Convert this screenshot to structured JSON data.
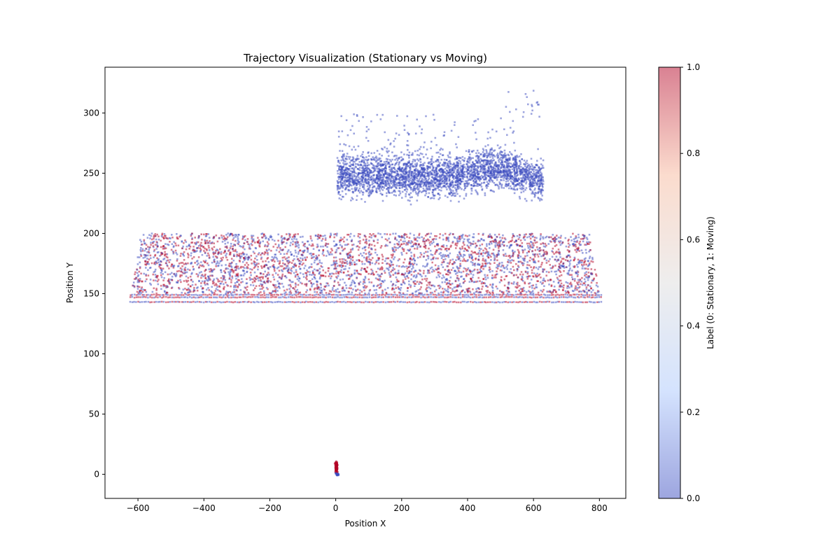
{
  "chart_data": {
    "type": "scatter",
    "title": "Trajectory Visualization (Stationary vs Moving)",
    "xlabel": "Position X",
    "ylabel": "Position Y",
    "xlim": [
      -700,
      880
    ],
    "ylim": [
      -20,
      338
    ],
    "xticks": [
      -600,
      -400,
      -200,
      0,
      200,
      400,
      600,
      800
    ],
    "yticks": [
      0,
      50,
      100,
      150,
      200,
      250,
      300
    ],
    "grid": false,
    "colormap": "coolwarm",
    "colormap_stops": [
      "#3b4cc0",
      "#aac7fd",
      "#dddcdc",
      "#f7b89c",
      "#b40426"
    ],
    "point_alpha": 0.5,
    "colorbar": {
      "label": "Label (0: Stationary, 1: Moving)",
      "range": [
        0.0,
        1.0
      ],
      "ticks": [
        "0.0",
        "0.2",
        "0.4",
        "0.6",
        "0.8",
        "1.0"
      ]
    },
    "clusters": [
      {
        "name": "upper-cluster",
        "label_value": 0,
        "color": "#3b4cc0",
        "x_range": [
          5,
          630
        ],
        "y_center": 248,
        "y_spread": 12,
        "outliers_y_max": 322
      },
      {
        "name": "parallelogram-band",
        "label_values": [
          0,
          1
        ],
        "colors": [
          "#3b4cc0",
          "#b40426"
        ],
        "corners_bottom_x": [
          -620,
          800
        ],
        "corners_top_x": [
          -590,
          770
        ],
        "y_range": [
          150,
          200
        ],
        "stripe_rows_y": [
          143,
          147,
          149
        ]
      },
      {
        "name": "origin-cluster",
        "label_value": 1,
        "color": "#b40426",
        "x_center": 2,
        "y_center": 6,
        "x_spread": 5,
        "y_spread": 5
      }
    ]
  }
}
